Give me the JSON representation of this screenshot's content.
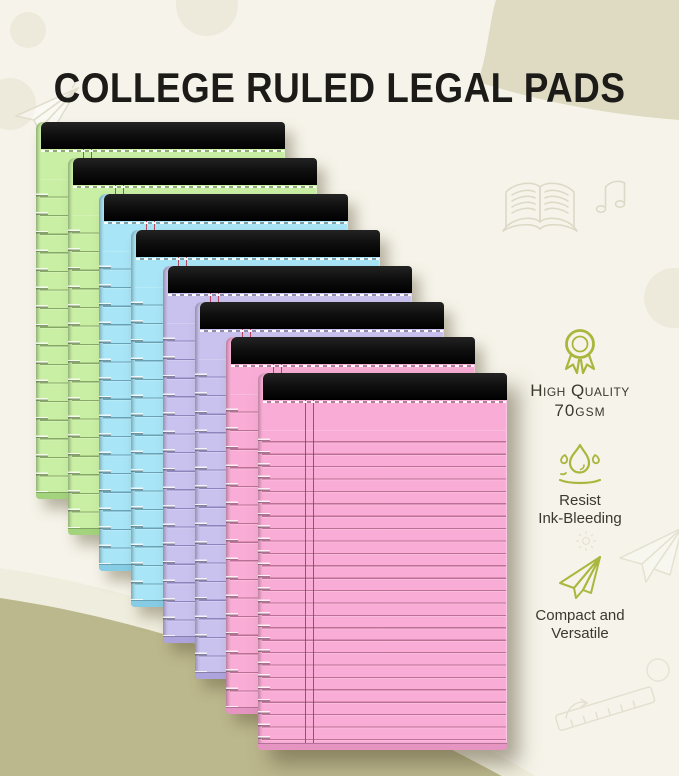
{
  "page": {
    "title": "COLLEGE RULED LEGAL PADS"
  },
  "colors": {
    "background": "#f6f4ea",
    "accent_olive_icon": "#a9b73e",
    "swoosh_top_right": "#dedbc2",
    "swoosh_bottom_left": "#bcb88d",
    "swoosh_bottom_band": "#efeddd",
    "binding_black": "#141414",
    "margin_red": "#b92f42",
    "title_text": "#1c1b18",
    "feature_text": "#3a392f"
  },
  "pads": [
    {
      "name": "green",
      "color": "#c9efa4",
      "line": "rgba(70,100,45,0.5)",
      "dark": "#a3d37d"
    },
    {
      "name": "green",
      "color": "#c9efa4",
      "line": "rgba(70,100,45,0.5)",
      "dark": "#a3d37d"
    },
    {
      "name": "blue",
      "color": "#a8e5f6",
      "line": "rgba(45,95,120,0.5)",
      "dark": "#86cce4"
    },
    {
      "name": "blue",
      "color": "#a8e5f6",
      "line": "rgba(45,95,120,0.5)",
      "dark": "#86cce4"
    },
    {
      "name": "purple",
      "color": "#c9c2ee",
      "line": "rgba(85,70,140,0.5)",
      "dark": "#aea4dd"
    },
    {
      "name": "purple",
      "color": "#c9c2ee",
      "line": "rgba(85,70,140,0.5)",
      "dark": "#aea4dd"
    },
    {
      "name": "pink",
      "color": "#f9add6",
      "line": "rgba(140,60,95,0.55)",
      "dark": "#e694c2"
    },
    {
      "name": "pink",
      "color": "#f9add6",
      "line": "rgba(140,60,95,0.55)",
      "dark": "#e694c2"
    }
  ],
  "features": [
    {
      "icon": "medal-icon",
      "line1": "High Quality",
      "line2": "70GSM"
    },
    {
      "icon": "water-drop-icon",
      "line1": "Resist",
      "line2": "Ink-Bleeding"
    },
    {
      "icon": "paper-plane-icon",
      "line1": "Compact and",
      "line2": "Versatile"
    }
  ]
}
